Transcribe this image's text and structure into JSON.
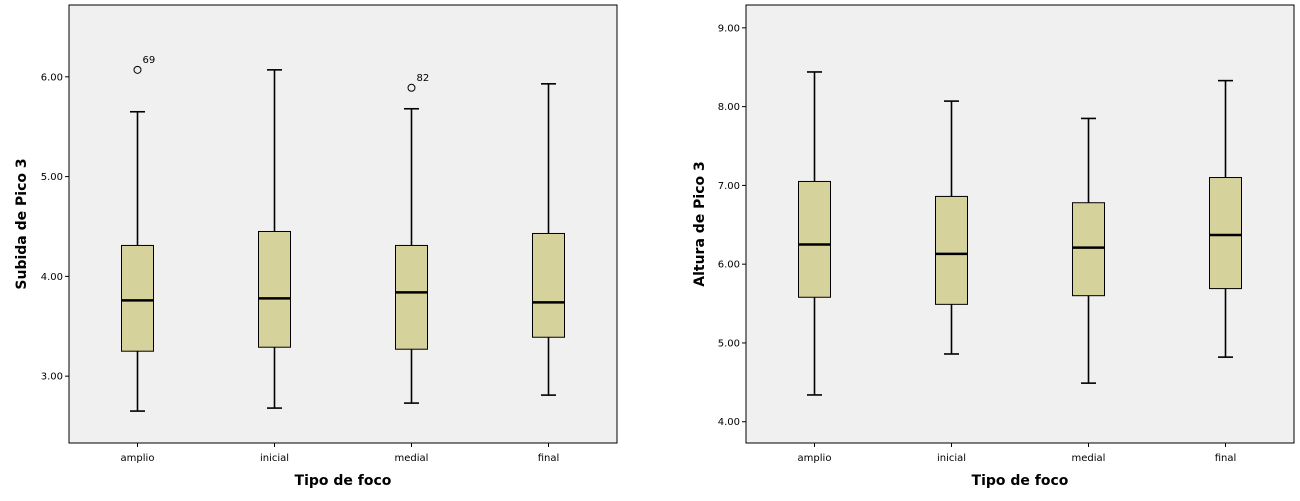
{
  "chart_data": [
    {
      "type": "boxplot",
      "xlabel": "Tipo de foco",
      "ylabel": "Subida de Pico 3",
      "categories": [
        "amplio",
        "inicial",
        "medial",
        "final"
      ],
      "ylim": [
        2.33,
        6.72
      ],
      "yticks": [
        3.0,
        4.0,
        5.0,
        6.0
      ],
      "ytick_labels": [
        "3.00",
        "4.00",
        "5.00",
        "6.00"
      ],
      "boxes": [
        {
          "category": "amplio",
          "min": 2.65,
          "q1": 3.25,
          "median": 3.76,
          "q3": 4.31,
          "max": 5.65
        },
        {
          "category": "inicial",
          "min": 2.68,
          "q1": 3.29,
          "median": 3.78,
          "q3": 4.45,
          "max": 6.07
        },
        {
          "category": "medial",
          "min": 2.73,
          "q1": 3.27,
          "median": 3.84,
          "q3": 4.31,
          "max": 5.68
        },
        {
          "category": "final",
          "min": 2.81,
          "q1": 3.39,
          "median": 3.74,
          "q3": 4.43,
          "max": 5.93
        }
      ],
      "outliers": [
        {
          "category": "amplio",
          "value": 6.07,
          "label": "69"
        },
        {
          "category": "medial",
          "value": 5.89,
          "label": "82"
        }
      ],
      "plot_background": "#f0f0f0",
      "box_fill": "#d6d29c",
      "grid": false
    },
    {
      "type": "boxplot",
      "xlabel": "Tipo de foco",
      "ylabel": "Altura de Pico 3",
      "categories": [
        "amplio",
        "inicial",
        "medial",
        "final"
      ],
      "ylim": [
        3.73,
        9.29
      ],
      "yticks": [
        4.0,
        5.0,
        6.0,
        7.0,
        8.0,
        9.0
      ],
      "ytick_labels": [
        "4.00",
        "5.00",
        "6.00",
        "7.00",
        "8.00",
        "9.00"
      ],
      "boxes": [
        {
          "category": "amplio",
          "min": 4.34,
          "q1": 5.58,
          "median": 6.25,
          "q3": 7.05,
          "max": 8.44
        },
        {
          "category": "inicial",
          "min": 4.86,
          "q1": 5.49,
          "median": 6.13,
          "q3": 6.86,
          "max": 8.07
        },
        {
          "category": "medial",
          "min": 4.49,
          "q1": 5.6,
          "median": 6.21,
          "q3": 6.78,
          "max": 7.85
        },
        {
          "category": "final",
          "min": 4.82,
          "q1": 5.69,
          "median": 6.37,
          "q3": 7.1,
          "max": 8.33
        }
      ],
      "outliers": [],
      "plot_background": "#f0f0f0",
      "box_fill": "#d6d29c",
      "grid": false
    }
  ]
}
